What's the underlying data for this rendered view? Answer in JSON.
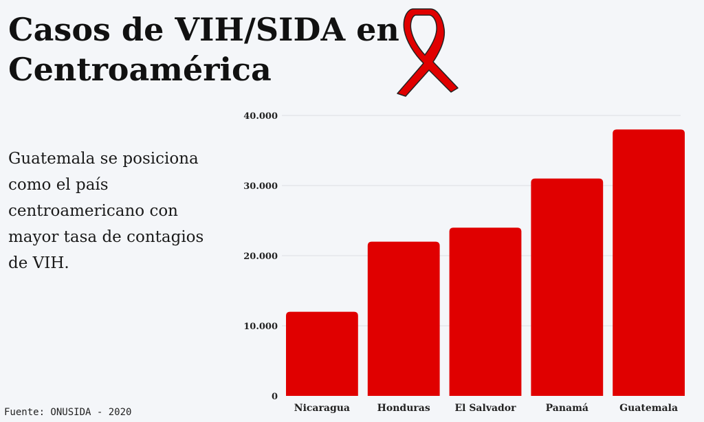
{
  "header": {
    "title_line1": "Casos de VIH/SIDA en",
    "title_line2": "Centroamérica"
  },
  "description": "Guatemala se posiciona como el país centroamericano con mayor tasa de contagios de VIH.",
  "source": "Fuente: ONUSIDA - 2020",
  "icons": {
    "ribbon": "red-awareness-ribbon-icon"
  },
  "colors": {
    "bar": "#e00000",
    "ribbon": "#e00000",
    "grid": "#dcdfe4"
  },
  "chart_data": {
    "type": "bar",
    "categories": [
      "Nicaragua",
      "Honduras",
      "El Salvador",
      "Panamá",
      "Guatemala"
    ],
    "values": [
      12000,
      22000,
      24000,
      31000,
      38000
    ],
    "ylim": [
      0,
      40000
    ],
    "yticks": [
      0,
      10000,
      20000,
      30000,
      40000
    ],
    "ytick_labels": [
      "0",
      "10.000",
      "20.000",
      "30.000",
      "40.000"
    ],
    "grid": true,
    "legend": "none"
  }
}
